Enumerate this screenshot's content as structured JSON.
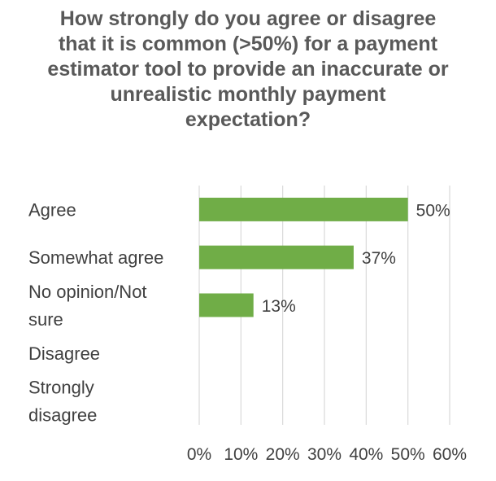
{
  "chart_data": {
    "type": "bar",
    "orientation": "horizontal",
    "title": "How strongly do you agree or disagree that it is common (>50%) for a payment estimator tool to provide an inaccurate or unrealistic monthly payment expectation?",
    "categories": [
      "Agree",
      "Somewhat agree",
      "No opinion/Not sure",
      "Disagree",
      "Strongly disagree"
    ],
    "values": [
      50,
      37,
      13,
      0,
      0
    ],
    "data_labels": [
      "50%",
      "37%",
      "13%",
      "",
      ""
    ],
    "xlim": [
      0,
      60
    ],
    "x_ticks": [
      "0%",
      "10%",
      "20%",
      "30%",
      "40%",
      "50%",
      "60%"
    ],
    "grid": "vertical",
    "legend": "none",
    "bar_color": "#70AD47"
  }
}
